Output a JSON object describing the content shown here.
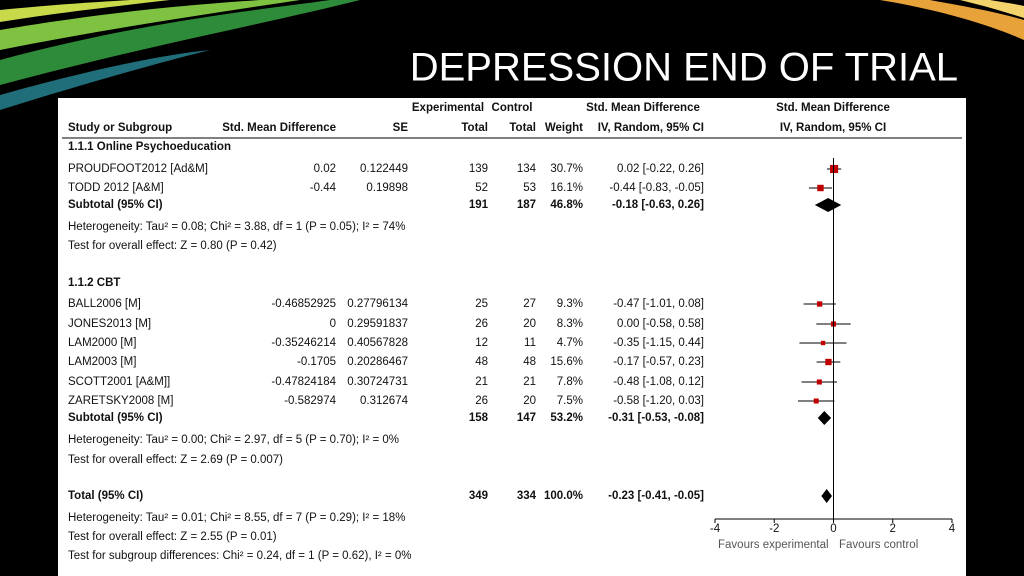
{
  "chart_data": {
    "type": "forest",
    "title": "DEPRESSION END OF TRIAL",
    "column_groups": [
      "Experimental",
      "Control",
      "Std. Mean Difference",
      "Std. Mean Difference"
    ],
    "columns": [
      "Study or Subgroup",
      "Std. Mean Difference",
      "SE",
      "Total",
      "Total",
      "Weight",
      "IV, Random, 95% CI",
      "IV, Random, 95% CI"
    ],
    "subgroups": [
      {
        "name": "1.1.1 Online Psychoeducation",
        "studies": [
          {
            "name": "PROUDFOOT2012 [Ad&M]",
            "smd": 0.02,
            "se": 0.122449,
            "exp_total": 139,
            "ctrl_total": 134,
            "weight": 30.7,
            "weight_label": "30.7%",
            "ci_label": "0.02 [-0.22, 0.26]",
            "lo": -0.22,
            "hi": 0.26
          },
          {
            "name": "TODD 2012 [A&M]",
            "smd": -0.44,
            "se": 0.19898,
            "exp_total": 52,
            "ctrl_total": 53,
            "weight": 16.1,
            "weight_label": "16.1%",
            "ci_label": "-0.44 [-0.83, -0.05]",
            "lo": -0.83,
            "hi": -0.05
          }
        ],
        "subtotal": {
          "name": "Subtotal (95% CI)",
          "exp_total": 191,
          "ctrl_total": 187,
          "weight": 46.8,
          "weight_label": "46.8%",
          "ci_label": "-0.18 [-0.63, 0.26]",
          "smd": -0.18,
          "lo": -0.63,
          "hi": 0.26
        },
        "heterogeneity": "Heterogeneity: Tau² = 0.08; Chi² = 3.88, df = 1 (P = 0.05); I² = 74%",
        "overall_test": "Test for overall effect: Z = 0.80 (P = 0.42)"
      },
      {
        "name": "1.1.2 CBT",
        "studies": [
          {
            "name": "BALL2006 [M]",
            "smd": -0.46852925,
            "se": 0.27796134,
            "exp_total": 25,
            "ctrl_total": 27,
            "weight": 9.3,
            "weight_label": "9.3%",
            "ci_label": "-0.47 [-1.01, 0.08]",
            "lo": -1.01,
            "hi": 0.08
          },
          {
            "name": "JONES2013 [M]",
            "smd": 0,
            "se": 0.29591837,
            "exp_total": 26,
            "ctrl_total": 20,
            "weight": 8.3,
            "weight_label": "8.3%",
            "ci_label": "0.00 [-0.58, 0.58]",
            "lo": -0.58,
            "hi": 0.58
          },
          {
            "name": "LAM2000 [M]",
            "smd": -0.35246214,
            "se": 0.40567828,
            "exp_total": 12,
            "ctrl_total": 11,
            "weight": 4.7,
            "weight_label": "4.7%",
            "ci_label": "-0.35 [-1.15, 0.44]",
            "lo": -1.15,
            "hi": 0.44
          },
          {
            "name": "LAM2003 [M]",
            "smd": -0.1705,
            "se": 0.20286467,
            "exp_total": 48,
            "ctrl_total": 48,
            "weight": 15.6,
            "weight_label": "15.6%",
            "ci_label": "-0.17 [-0.57, 0.23]",
            "lo": -0.57,
            "hi": 0.23
          },
          {
            "name": "SCOTT2001 [A&M]]",
            "smd": -0.47824184,
            "se": 0.30724731,
            "exp_total": 21,
            "ctrl_total": 21,
            "weight": 7.8,
            "weight_label": "7.8%",
            "ci_label": "-0.48 [-1.08, 0.12]",
            "lo": -1.08,
            "hi": 0.12
          },
          {
            "name": "ZARETSKY2008  [M]",
            "smd": -0.582974,
            "se": 0.312674,
            "exp_total": 26,
            "ctrl_total": 20,
            "weight": 7.5,
            "weight_label": "7.5%",
            "ci_label": "-0.58 [-1.20, 0.03]",
            "lo": -1.2,
            "hi": 0.03
          }
        ],
        "subtotal": {
          "name": "Subtotal (95% CI)",
          "exp_total": 158,
          "ctrl_total": 147,
          "weight": 53.2,
          "weight_label": "53.2%",
          "ci_label": "-0.31 [-0.53, -0.08]",
          "smd": -0.31,
          "lo": -0.53,
          "hi": -0.08
        },
        "heterogeneity": "Heterogeneity: Tau² = 0.00; Chi² = 2.97, df = 5 (P = 0.70); I² = 0%",
        "overall_test": "Test for overall effect: Z = 2.69 (P = 0.007)"
      }
    ],
    "total": {
      "name": "Total (95% CI)",
      "exp_total": 349,
      "ctrl_total": 334,
      "weight": 100,
      "weight_label": "100.0%",
      "ci_label": "-0.23 [-0.41, -0.05]",
      "smd": -0.23,
      "lo": -0.41,
      "hi": -0.05
    },
    "total_heterogeneity": "Heterogeneity: Tau² = 0.01; Chi² = 8.55, df = 7 (P = 0.29); I² = 18%",
    "total_overall_test": "Test for overall effect: Z = 2.55 (P = 0.01)",
    "subgroup_test": "Test for subgroup differences: Chi² = 0.24, df = 1 (P = 0.62), I² = 0%",
    "xlim": [
      -4,
      4
    ],
    "xticks": [
      -4,
      -2,
      0,
      2,
      4
    ],
    "xlabel_left": "Favours experimental",
    "xlabel_right": "Favours control",
    "square_color": "#c00000",
    "diamond_color": "#000000"
  }
}
